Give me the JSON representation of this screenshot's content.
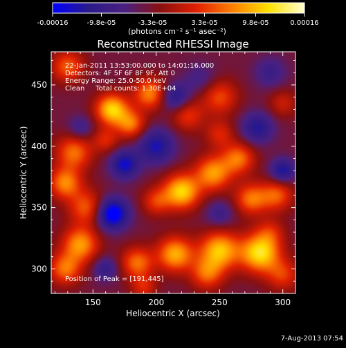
{
  "chart_data": {
    "type": "heatmap",
    "title": "Reconstructed RHESSI Image",
    "xlabel": "Heliocentric X (arcsec)",
    "ylabel": "Heliocentric Y (arcsec)",
    "xlim": [
      117,
      310
    ],
    "ylim": [
      280,
      477
    ],
    "x_ticks": [
      150,
      200,
      250,
      300
    ],
    "y_ticks": [
      300,
      350,
      400,
      450
    ],
    "colorbar": {
      "min": -0.00016,
      "max": 0.00016,
      "tick_values": [
        -0.00016,
        -9.8e-05,
        -3.3e-05,
        3.3e-05,
        9.8e-05,
        0.00016
      ],
      "tick_labels": [
        "-0.00016",
        "-9.8e-05",
        "-3.3e-05",
        "3.3e-05",
        "9.8e-05",
        "0.00016"
      ],
      "unit_label": "(photons cm⁻² s⁻¹ asec⁻²)"
    },
    "info_lines": [
      "22-Jan-2011 13:53:00.000 to 14:01:16.000",
      "Detectors: 4F 5F 6F 8F 9F, Att 0",
      "Energy Range: 25.0-50.0 keV",
      "Clean     Total counts: 1.30E+04"
    ],
    "peak_label": "Position of Peak = [191,445]",
    "footer_date": "7-Aug-2013 07:54",
    "colormap": [
      "#0000ff",
      "#2a1a8a",
      "#4a2080",
      "#8a1010",
      "#e02000",
      "#ff8000",
      "#ffe000",
      "#ffffd0"
    ],
    "blobs": [
      {
        "x": 165,
        "y": 430,
        "sigma": 9,
        "value": 0.00015
      },
      {
        "x": 195,
        "y": 443,
        "sigma": 9,
        "value": 0.00011
      },
      {
        "x": 180,
        "y": 418,
        "sigma": 8,
        "value": 0.0001
      },
      {
        "x": 250,
        "y": 440,
        "sigma": 10,
        "value": 8e-05
      },
      {
        "x": 225,
        "y": 425,
        "sigma": 9,
        "value": 7e-05
      },
      {
        "x": 300,
        "y": 435,
        "sigma": 8,
        "value": 5e-05
      },
      {
        "x": 130,
        "y": 465,
        "sigma": 9,
        "value": 9e-05
      },
      {
        "x": 160,
        "y": 405,
        "sigma": 7,
        "value": 6e-05
      },
      {
        "x": 135,
        "y": 395,
        "sigma": 10,
        "value": 0.0001
      },
      {
        "x": 128,
        "y": 370,
        "sigma": 9,
        "value": 0.00011
      },
      {
        "x": 145,
        "y": 350,
        "sigma": 10,
        "value": 9e-05
      },
      {
        "x": 140,
        "y": 320,
        "sigma": 10,
        "value": 0.00012
      },
      {
        "x": 128,
        "y": 300,
        "sigma": 9,
        "value": 0.0001
      },
      {
        "x": 220,
        "y": 363,
        "sigma": 10,
        "value": 0.00015
      },
      {
        "x": 245,
        "y": 378,
        "sigma": 10,
        "value": 0.00012
      },
      {
        "x": 265,
        "y": 390,
        "sigma": 9,
        "value": 0.0001
      },
      {
        "x": 250,
        "y": 410,
        "sigma": 8,
        "value": 6e-05
      },
      {
        "x": 200,
        "y": 355,
        "sigma": 8,
        "value": 7e-05
      },
      {
        "x": 275,
        "y": 357,
        "sigma": 9,
        "value": 0.0001
      },
      {
        "x": 295,
        "y": 360,
        "sigma": 9,
        "value": 9e-05
      },
      {
        "x": 290,
        "y": 330,
        "sigma": 8,
        "value": 5e-05
      },
      {
        "x": 282,
        "y": 313,
        "sigma": 11,
        "value": 0.00016
      },
      {
        "x": 250,
        "y": 315,
        "sigma": 11,
        "value": 0.00014
      },
      {
        "x": 215,
        "y": 312,
        "sigma": 10,
        "value": 0.00013
      },
      {
        "x": 185,
        "y": 305,
        "sigma": 9,
        "value": 0.0001
      },
      {
        "x": 240,
        "y": 296,
        "sigma": 9,
        "value": 9e-05
      },
      {
        "x": 300,
        "y": 295,
        "sigma": 9,
        "value": 7e-05
      },
      {
        "x": 190,
        "y": 285,
        "sigma": 7,
        "value": 6e-05
      },
      {
        "x": 165,
        "y": 345,
        "sigma": 9,
        "value": -0.00014
      },
      {
        "x": 200,
        "y": 400,
        "sigma": 10,
        "value": -9e-05
      },
      {
        "x": 175,
        "y": 385,
        "sigma": 8,
        "value": -0.0001
      },
      {
        "x": 215,
        "y": 440,
        "sigma": 8,
        "value": -8e-05
      },
      {
        "x": 280,
        "y": 415,
        "sigma": 9,
        "value": -8e-05
      },
      {
        "x": 300,
        "y": 380,
        "sigma": 7,
        "value": -9e-05
      },
      {
        "x": 250,
        "y": 345,
        "sigma": 8,
        "value": -5e-05
      },
      {
        "x": 160,
        "y": 300,
        "sigma": 7,
        "value": -6e-05
      },
      {
        "x": 140,
        "y": 415,
        "sigma": 7,
        "value": -5e-05
      },
      {
        "x": 235,
        "y": 455,
        "sigma": 9,
        "value": -4e-05
      },
      {
        "x": 290,
        "y": 460,
        "sigma": 9,
        "value": -5e-05
      }
    ],
    "background_value": -4e-05
  }
}
